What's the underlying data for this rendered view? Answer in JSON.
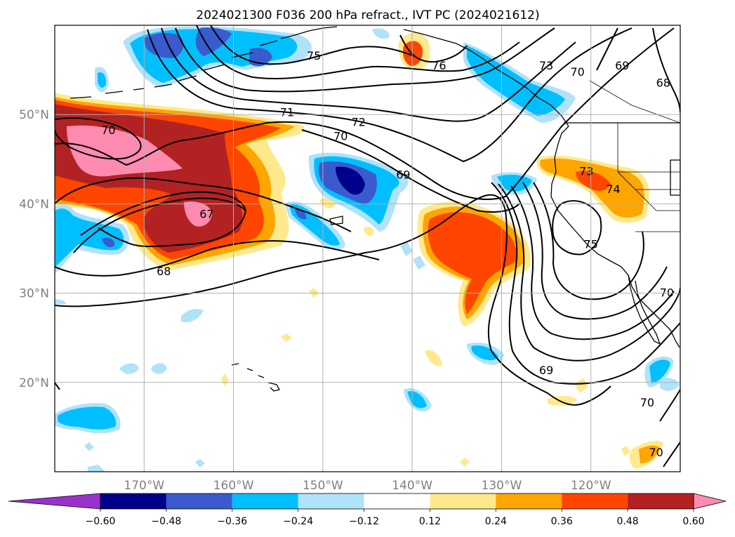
{
  "chart_data": {
    "type": "heatmap",
    "title": "2024021300 F036 200 hPa refract., IVT PC (2024021612)",
    "projection": "lat-lon map, North Pacific",
    "lon_range": [
      -180,
      -110
    ],
    "lat_range": [
      10,
      60
    ],
    "x_ticks": [
      {
        "value": -170,
        "label": "170°W"
      },
      {
        "value": -160,
        "label": "160°W"
      },
      {
        "value": -150,
        "label": "150°W"
      },
      {
        "value": -140,
        "label": "140°W"
      },
      {
        "value": -130,
        "label": "130°W"
      },
      {
        "value": -120,
        "label": "120°W"
      }
    ],
    "y_ticks": [
      {
        "value": 20,
        "label": "20°N"
      },
      {
        "value": 30,
        "label": "30°N"
      },
      {
        "value": 40,
        "label": "40°N"
      },
      {
        "value": 50,
        "label": "50°N"
      }
    ],
    "grid": true,
    "filled_field": {
      "variable": "IVT PC",
      "levels": [
        -0.6,
        -0.48,
        -0.36,
        -0.24,
        -0.12,
        0.12,
        0.24,
        0.36,
        0.48,
        0.6
      ],
      "level_labels": [
        "−0.60",
        "−0.48",
        "−0.36",
        "−0.24",
        "−0.12",
        "0.12",
        "0.24",
        "0.36",
        "0.48",
        "0.60"
      ],
      "colors": [
        "#9932cc",
        "#00008b",
        "#3a5bcd",
        "#00bfff",
        "#b0e2fa",
        "#ffffff",
        "#ffe98c",
        "#ffa500",
        "#ff4500",
        "#b22222",
        "#ff8bb0"
      ],
      "extend": "both",
      "colorbar": "bottom"
    },
    "contour_field": {
      "variable": "200 hPa refractivity",
      "contour_labels": [
        {
          "label": "75",
          "lon": -151,
          "lat": 56.6
        },
        {
          "label": "76",
          "lon": -137,
          "lat": 55.5
        },
        {
          "label": "73",
          "lon": -125,
          "lat": 55.5
        },
        {
          "label": "70",
          "lon": -121.5,
          "lat": 54.8
        },
        {
          "label": "69",
          "lon": -116.5,
          "lat": 55.5
        },
        {
          "label": "68",
          "lon": -111.9,
          "lat": 53.6
        },
        {
          "label": "71",
          "lon": -154,
          "lat": 50.3
        },
        {
          "label": "72",
          "lon": -146,
          "lat": 49.2
        },
        {
          "label": "70",
          "lon": -148,
          "lat": 47.6
        },
        {
          "label": "70",
          "lon": -174,
          "lat": 48.3
        },
        {
          "label": "69",
          "lon": -141,
          "lat": 43.3
        },
        {
          "label": "73",
          "lon": -120.5,
          "lat": 43.7
        },
        {
          "label": "74",
          "lon": -117.5,
          "lat": 41.7
        },
        {
          "label": "75",
          "lon": -120,
          "lat": 35.5
        },
        {
          "label": "67",
          "lon": -163,
          "lat": 38.9
        },
        {
          "label": "68",
          "lon": -167.8,
          "lat": 32.5
        },
        {
          "label": "69",
          "lon": -125,
          "lat": 21.4
        },
        {
          "label": "70",
          "lon": -111.5,
          "lat": 30.1
        },
        {
          "label": "70",
          "lon": -113.7,
          "lat": 17.8
        },
        {
          "label": "70",
          "lon": -112.7,
          "lat": 12.2
        }
      ]
    }
  }
}
